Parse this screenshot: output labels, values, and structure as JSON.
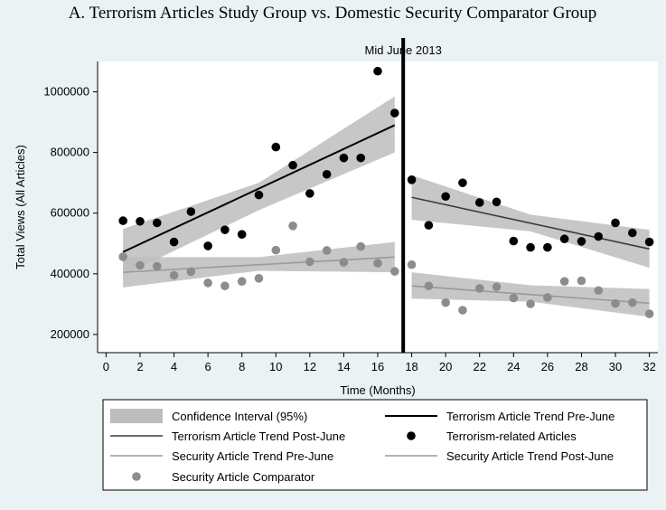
{
  "chart_data": {
    "type": "scatter",
    "title": "A. Terrorism Articles Study Group vs. Domestic Security Comparator Group",
    "xlabel": "Time (Months)",
    "ylabel": "Total Views (All Articles)",
    "xlim": [
      -0.5,
      32.5
    ],
    "ylim": [
      140000,
      1100000
    ],
    "xticks": [
      0,
      2,
      4,
      6,
      8,
      10,
      12,
      14,
      16,
      18,
      20,
      22,
      24,
      26,
      28,
      30,
      32
    ],
    "yticks": [
      200000,
      400000,
      600000,
      800000,
      1000000
    ],
    "ytick_labels": [
      "200000",
      "400000",
      "600000",
      "800000",
      "1000000"
    ],
    "vline": {
      "x": 17.5,
      "label": "Mid June 2013"
    },
    "grid": false,
    "legend_position": "bottom",
    "colors": {
      "background": "#eaf2f3",
      "plot_area": "#ffffff",
      "ci_band": "#bdbdbd",
      "terrorism": "#000000",
      "terrorism_trend_post": "#3c3c3c",
      "security": "#8c8c8c",
      "security_trend": "#9a9a9a"
    },
    "series": [
      {
        "name": "Terrorism-related Articles",
        "kind": "points",
        "color": "#000000",
        "points": [
          [
            1,
            575000
          ],
          [
            2,
            573000
          ],
          [
            3,
            568000
          ],
          [
            4,
            505000
          ],
          [
            5,
            605000
          ],
          [
            6,
            492000
          ],
          [
            7,
            545000
          ],
          [
            8,
            530000
          ],
          [
            9,
            660000
          ],
          [
            10,
            818000
          ],
          [
            11,
            758000
          ],
          [
            12,
            665000
          ],
          [
            13,
            728000
          ],
          [
            14,
            782000
          ],
          [
            15,
            782000
          ],
          [
            16,
            1068000
          ],
          [
            17,
            930000
          ],
          [
            18,
            710000
          ],
          [
            19,
            560000
          ],
          [
            20,
            655000
          ],
          [
            21,
            700000
          ],
          [
            22,
            635000
          ],
          [
            23,
            637000
          ],
          [
            24,
            508000
          ],
          [
            25,
            487000
          ],
          [
            26,
            487000
          ],
          [
            27,
            515000
          ],
          [
            28,
            507000
          ],
          [
            29,
            523000
          ],
          [
            30,
            568000
          ],
          [
            31,
            535000
          ],
          [
            32,
            505000
          ]
        ]
      },
      {
        "name": "Security Article Comparator",
        "kind": "points",
        "color": "#8c8c8c",
        "points": [
          [
            1,
            456000
          ],
          [
            2,
            428000
          ],
          [
            3,
            425000
          ],
          [
            4,
            395000
          ],
          [
            5,
            407000
          ],
          [
            6,
            370000
          ],
          [
            7,
            360000
          ],
          [
            8,
            375000
          ],
          [
            9,
            385000
          ],
          [
            10,
            478000
          ],
          [
            11,
            558000
          ],
          [
            12,
            440000
          ],
          [
            13,
            477000
          ],
          [
            14,
            438000
          ],
          [
            15,
            490000
          ],
          [
            16,
            435000
          ],
          [
            17,
            408000
          ],
          [
            18,
            430000
          ],
          [
            19,
            360000
          ],
          [
            20,
            305000
          ],
          [
            21,
            280000
          ],
          [
            22,
            352000
          ],
          [
            23,
            357000
          ],
          [
            24,
            320000
          ],
          [
            25,
            301000
          ],
          [
            26,
            322000
          ],
          [
            27,
            375000
          ],
          [
            28,
            377000
          ],
          [
            29,
            345000
          ],
          [
            30,
            302000
          ],
          [
            31,
            305000
          ],
          [
            32,
            268000
          ]
        ]
      },
      {
        "name": "Terrorism Article Trend Pre-June",
        "kind": "line",
        "color": "#000000",
        "points": [
          [
            1,
            472000
          ],
          [
            17,
            890000
          ]
        ],
        "ci_lower": [
          [
            1,
            395000
          ],
          [
            9,
            610000
          ],
          [
            17,
            800000
          ]
        ],
        "ci_upper": [
          [
            1,
            548000
          ],
          [
            9,
            700000
          ],
          [
            17,
            985000
          ]
        ]
      },
      {
        "name": "Terrorism Article Trend Post-June",
        "kind": "line",
        "color": "#3c3c3c",
        "points": [
          [
            18,
            652000
          ],
          [
            32,
            482000
          ]
        ],
        "ci_lower": [
          [
            18,
            578000
          ],
          [
            25,
            540000
          ],
          [
            32,
            420000
          ]
        ],
        "ci_upper": [
          [
            18,
            725000
          ],
          [
            25,
            595000
          ],
          [
            32,
            545000
          ]
        ]
      },
      {
        "name": "Security Article Trend Pre-June",
        "kind": "line",
        "color": "#9a9a9a",
        "points": [
          [
            1,
            405000
          ],
          [
            17,
            455000
          ]
        ],
        "ci_lower": [
          [
            1,
            355000
          ],
          [
            9,
            410000
          ],
          [
            17,
            405000
          ]
        ],
        "ci_upper": [
          [
            1,
            455000
          ],
          [
            9,
            455000
          ],
          [
            17,
            505000
          ]
        ]
      },
      {
        "name": "Security Article Trend Post-June",
        "kind": "line",
        "color": "#9a9a9a",
        "points": [
          [
            18,
            360000
          ],
          [
            32,
            303000
          ]
        ],
        "ci_lower": [
          [
            18,
            318000
          ],
          [
            25,
            308000
          ],
          [
            32,
            258000
          ]
        ],
        "ci_upper": [
          [
            18,
            405000
          ],
          [
            25,
            362000
          ],
          [
            32,
            350000
          ]
        ]
      }
    ],
    "legend": [
      {
        "label": "Confidence Interval (95%)",
        "symbol": "band"
      },
      {
        "label": "Terrorism Article Trend Pre-June",
        "symbol": "line",
        "color": "#000000"
      },
      {
        "label": "Terrorism Article Trend Post-June",
        "symbol": "line",
        "color": "#3c3c3c"
      },
      {
        "label": "Terrorism-related Articles",
        "symbol": "dot",
        "color": "#000000"
      },
      {
        "label": "Security Article Trend Pre-June",
        "symbol": "line",
        "color": "#9a9a9a"
      },
      {
        "label": "Security Article Trend Post-June",
        "symbol": "line",
        "color": "#9a9a9a"
      },
      {
        "label": "Security Article Comparator",
        "symbol": "dot",
        "color": "#8c8c8c"
      }
    ]
  }
}
